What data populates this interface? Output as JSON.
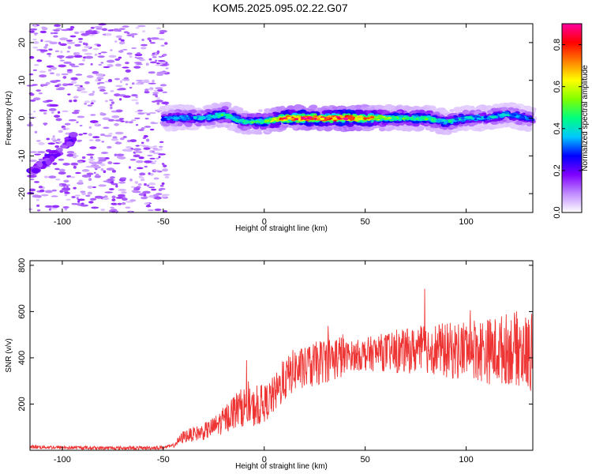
{
  "title": "KOM5.2025.095.02.22.G07",
  "chart_data": [
    {
      "type": "heatmap",
      "xlabel": "Height of straight line (km)",
      "ylabel": "Frequency (Hz)",
      "xlim": [
        -116,
        133
      ],
      "ylim": [
        -25,
        25
      ],
      "xticks": [
        -100,
        -50,
        0,
        50,
        100
      ],
      "yticks": [
        -20,
        -10,
        0,
        10,
        20
      ],
      "colorbar": {
        "label": "Normalized spectral amplitude",
        "range": [
          0,
          0.9
        ],
        "ticks": [
          0.0,
          0.2,
          0.4,
          0.6,
          0.8
        ],
        "colors": [
          "#ffffff",
          "#c08cff",
          "#8000ff",
          "#0000ff",
          "#00c8ff",
          "#00ff80",
          "#80ff00",
          "#ffff00",
          "#ff8000",
          "#ff0000",
          "#ff00a0"
        ]
      },
      "ridge": {
        "description_points_x": [
          -50,
          -40,
          -30,
          -20,
          -10,
          0,
          10,
          20,
          30,
          40,
          50,
          60,
          70,
          80,
          90,
          100,
          110,
          120,
          130
        ],
        "description_points_y": [
          0,
          0,
          0,
          1,
          -1,
          -1,
          0,
          0,
          0,
          0,
          0,
          0,
          0,
          0,
          -1,
          0,
          0,
          1,
          0
        ],
        "peak_amplitude": [
          0.3,
          0.35,
          0.35,
          0.45,
          0.4,
          0.45,
          0.75,
          0.8,
          0.75,
          0.85,
          0.7,
          0.5,
          0.45,
          0.45,
          0.4,
          0.35,
          0.35,
          0.35,
          0.3
        ]
      }
    },
    {
      "type": "line",
      "xlabel": "Height of straight line (km)",
      "ylabel": "SNR (v/v)",
      "xlim": [
        -116,
        133
      ],
      "ylim": [
        0,
        820
      ],
      "xticks": [
        -100,
        -50,
        0,
        50,
        100
      ],
      "yticks": [
        200,
        400,
        600,
        800
      ],
      "series": [
        {
          "color": "#ee3333",
          "x": [
            -116,
            -100,
            -80,
            -60,
            -50,
            -45,
            -40,
            -35,
            -30,
            -25,
            -20,
            -15,
            -10,
            -5,
            0,
            5,
            10,
            15,
            20,
            25,
            30,
            35,
            40,
            45,
            50,
            55,
            60,
            65,
            70,
            75,
            80,
            85,
            90,
            95,
            100,
            105,
            110,
            115,
            120,
            125,
            130,
            133
          ],
          "y": [
            15,
            12,
            10,
            10,
            12,
            20,
            60,
            70,
            80,
            100,
            130,
            170,
            190,
            180,
            200,
            240,
            300,
            350,
            350,
            370,
            390,
            400,
            410,
            410,
            415,
            420,
            425,
            420,
            430,
            430,
            440,
            440,
            430,
            430,
            440,
            440,
            430,
            430,
            440,
            440,
            420,
            420
          ]
        }
      ]
    }
  ]
}
